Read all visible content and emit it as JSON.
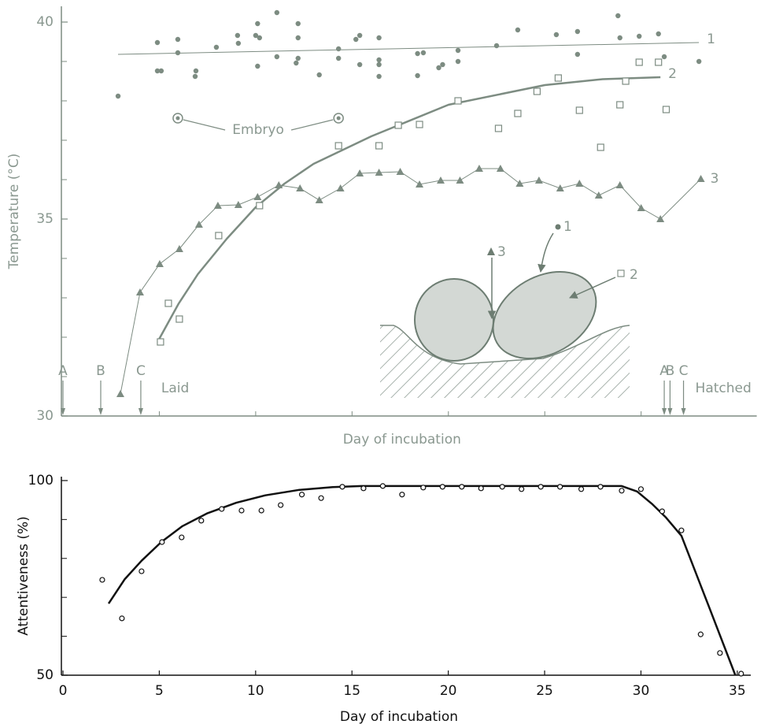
{
  "chart_data": [
    {
      "type": "scatter",
      "ylabel": "Temperature (°C)",
      "xlabel": "Day of incubation",
      "xlim": [
        0,
        36
      ],
      "ylim": [
        30,
        40.4
      ],
      "yticks": [
        30,
        35,
        40
      ],
      "minor_yticks": [
        31,
        32,
        33,
        34,
        36,
        37,
        38,
        39
      ],
      "xticks_unlabeled": [
        5,
        10,
        15,
        20,
        25,
        30
      ],
      "color": "#7d8c82",
      "series": [
        {
          "name": "1",
          "marker": "dot",
          "x": [
            2.86,
            4.9,
            4.9,
            5.1,
            5.96,
            5.96,
            6.9,
            6.86,
            7.96,
            9.06,
            9.1,
            10.0,
            10.1,
            10.2,
            10.1,
            11.1,
            11.1,
            12.2,
            12.2,
            12.2,
            12.1,
            13.3,
            14.3,
            14.3,
            15.2,
            15.4,
            15.4,
            16.4,
            16.4,
            16.4,
            16.4,
            18.4,
            18.7,
            18.4,
            19.5,
            19.7,
            20.5,
            20.5,
            22.5,
            23.6,
            25.6,
            26.7,
            26.7,
            28.8,
            28.9,
            29.9,
            30.9,
            31.2,
            33.0
          ],
          "values": [
            38.12,
            39.48,
            38.76,
            38.76,
            39.56,
            39.22,
            38.76,
            38.62,
            39.36,
            39.66,
            39.46,
            39.66,
            39.96,
            39.6,
            38.88,
            40.24,
            39.12,
            39.96,
            39.6,
            39.08,
            38.96,
            38.66,
            39.32,
            39.08,
            39.56,
            39.66,
            38.92,
            39.6,
            39.04,
            38.92,
            38.62,
            39.2,
            39.22,
            38.64,
            38.84,
            38.92,
            39.28,
            39.0,
            39.4,
            39.8,
            39.68,
            39.76,
            39.18,
            40.16,
            39.6,
            39.64,
            39.7,
            39.12,
            39.0
          ],
          "fit_x": [
            2.86,
            33
          ],
          "fit_values": [
            39.18,
            39.48
          ],
          "line_width": 1
        },
        {
          "name": "2",
          "marker": "square",
          "x": [
            5.06,
            5.47,
            6.04,
            8.08,
            10.2,
            14.3,
            16.4,
            17.4,
            18.5,
            20.5,
            22.6,
            23.6,
            24.6,
            25.7,
            26.8,
            27.9,
            28.9,
            29.2,
            29.9,
            30.9,
            31.3
          ],
          "values": [
            31.88,
            32.86,
            32.46,
            34.58,
            35.34,
            36.86,
            36.86,
            37.38,
            37.4,
            38.0,
            37.3,
            37.68,
            38.24,
            38.58,
            37.76,
            36.82,
            37.9,
            38.5,
            38.98,
            38.98,
            37.78
          ],
          "fit_x": [
            5,
            6,
            7,
            8.5,
            10,
            11.5,
            13,
            16,
            20,
            25,
            28,
            31
          ],
          "fit_values": [
            31.96,
            32.85,
            33.6,
            34.5,
            35.3,
            35.9,
            36.4,
            37.1,
            37.9,
            38.4,
            38.55,
            38.6
          ],
          "line_width": 2.5
        },
        {
          "name": "3",
          "marker": "triangle",
          "connect": true,
          "line_width": 1,
          "x": [
            2.98,
            4.0,
            5.02,
            6.04,
            7.06,
            8.04,
            9.1,
            10.1,
            11.2,
            12.3,
            13.3,
            14.4,
            15.4,
            16.4,
            17.5,
            18.5,
            19.6,
            20.6,
            21.6,
            22.7,
            23.7,
            24.7,
            25.8,
            26.8,
            27.8,
            28.9,
            30.0,
            31.0,
            33.1
          ],
          "values": [
            30.56,
            33.14,
            33.86,
            34.24,
            34.86,
            35.34,
            35.36,
            35.56,
            35.86,
            35.78,
            35.48,
            35.78,
            36.16,
            36.18,
            36.2,
            35.88,
            35.98,
            35.98,
            36.28,
            36.28,
            35.9,
            35.98,
            35.78,
            35.9,
            35.6,
            35.86,
            35.28,
            35.0,
            36.02
          ]
        },
        {
          "name": "Embryo",
          "marker": "circle-dot",
          "x": [
            5.96,
            14.3
          ],
          "values": [
            37.56,
            37.56
          ]
        }
      ],
      "events": [
        {
          "label": "A",
          "day": 0
        },
        {
          "label": "B",
          "day": 1.96
        },
        {
          "label": "C",
          "day": 4.04
        },
        {
          "label": "A",
          "day": 31.2
        },
        {
          "label": "B",
          "day": 31.5
        },
        {
          "label": "C",
          "day": 32.2
        }
      ],
      "laid_label": "Laid",
      "hatched_label": "Hatched"
    },
    {
      "type": "scatter",
      "ylabel": "Attentiveness (%)",
      "xlabel": "Day of incubation",
      "xlim": [
        0,
        35.7
      ],
      "ylim": [
        50,
        101
      ],
      "xticks": [
        0,
        5,
        10,
        15,
        20,
        25,
        30,
        35
      ],
      "yticks": [
        50,
        100
      ],
      "minor_yticks": [
        60,
        70,
        80,
        90
      ],
      "color": "#111111",
      "series": [
        {
          "marker": "open-circle",
          "x": [
            2.04,
            3.06,
            4.08,
            5.14,
            6.16,
            7.18,
            8.24,
            9.27,
            10.3,
            11.3,
            12.4,
            13.4,
            14.5,
            15.6,
            16.6,
            17.6,
            18.7,
            19.7,
            20.7,
            21.7,
            22.8,
            23.8,
            24.8,
            25.8,
            26.9,
            27.9,
            29.0,
            30.0,
            31.1,
            32.1,
            33.1,
            34.1,
            35.2
          ],
          "values": [
            74.5,
            64.6,
            76.7,
            84.2,
            85.4,
            89.7,
            92.7,
            92.3,
            92.3,
            93.7,
            96.4,
            95.5,
            98.4,
            98.0,
            98.6,
            96.4,
            98.2,
            98.4,
            98.4,
            98.0,
            98.4,
            97.8,
            98.4,
            98.4,
            97.8,
            98.4,
            97.4,
            97.8,
            92.1,
            87.2,
            60.5,
            55.7,
            50.4
          ],
          "fit_x": [
            2.37,
            3.2,
            4.08,
            5.1,
            6.2,
            7.5,
            9.0,
            10.5,
            12.25,
            14,
            15.5,
            29.0,
            29.8,
            30.6,
            31.3,
            32.1,
            33.5,
            34.9
          ],
          "fit_values": [
            68.4,
            74.6,
            79.4,
            84.2,
            88.3,
            91.6,
            94.3,
            96.2,
            97.6,
            98.3,
            98.6,
            98.6,
            97.2,
            93.9,
            90.5,
            85.8,
            68.0,
            50
          ],
          "line_width": 2.5
        }
      ]
    }
  ],
  "diagram": {
    "labels": [
      "1",
      "2",
      "3"
    ]
  }
}
